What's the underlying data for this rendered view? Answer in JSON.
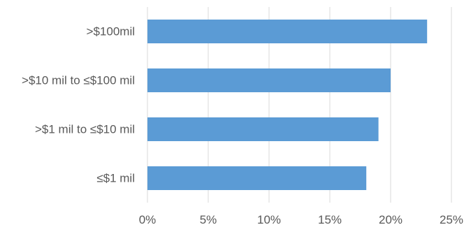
{
  "chart_data": {
    "type": "bar",
    "orientation": "horizontal",
    "categories": [
      ">$100mil",
      ">$10 mil to ≤$100 mil",
      ">$1 mil to ≤$10 mil",
      "≤$1 mil"
    ],
    "values": [
      0.23,
      0.2,
      0.19,
      0.18
    ],
    "xlim": [
      0,
      0.25
    ],
    "x_ticks": [
      0,
      0.05,
      0.1,
      0.15,
      0.2,
      0.25
    ],
    "x_tick_labels": [
      "0%",
      "5%",
      "10%",
      "15%",
      "20%",
      "25%"
    ],
    "grid": true,
    "legend": "none",
    "title": "",
    "xlabel": "",
    "ylabel": "",
    "colors": {
      "bar": "#5b9bd5",
      "grid": "#d9d9d9",
      "text": "#595959"
    }
  }
}
